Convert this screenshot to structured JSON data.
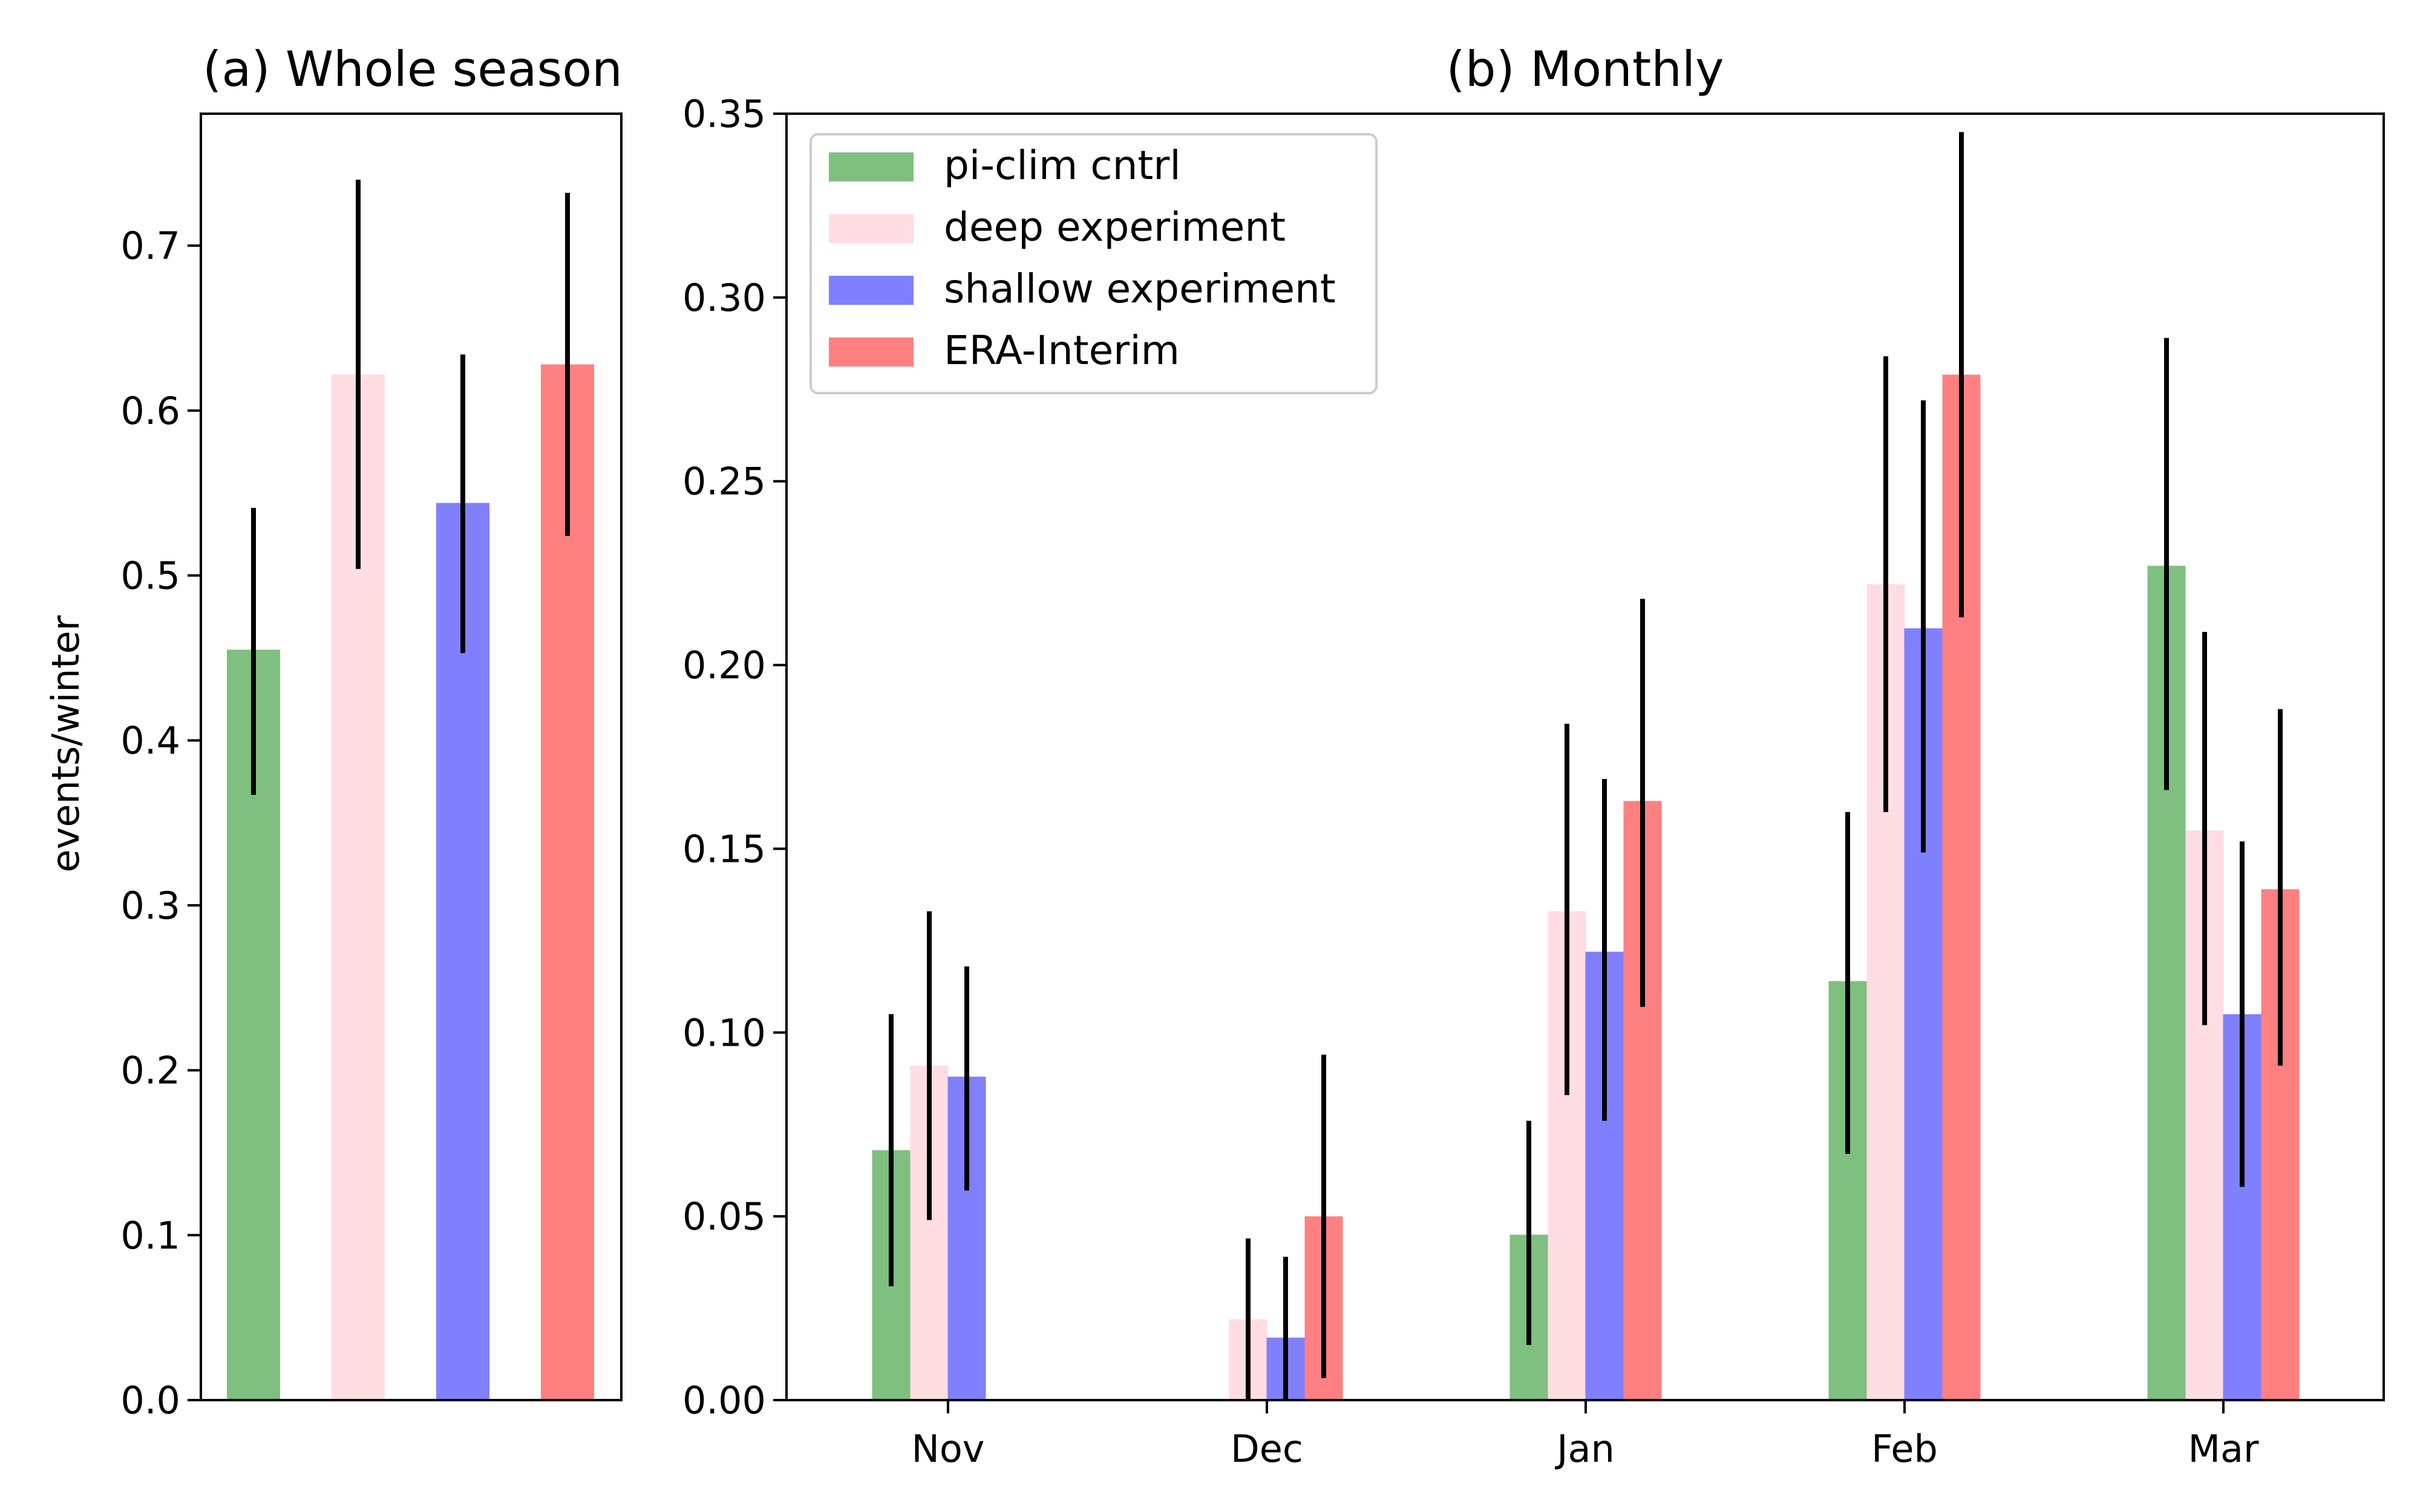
{
  "chart_data": [
    {
      "type": "bar",
      "title": "(a) Whole season",
      "xlabel": "",
      "ylabel": "events/winter",
      "ylim": [
        0,
        0.78
      ],
      "yticks": [
        0.0,
        0.1,
        0.2,
        0.3,
        0.4,
        0.5,
        0.6,
        0.7
      ],
      "ytick_labels": [
        "0.0",
        "0.1",
        "0.2",
        "0.3",
        "0.4",
        "0.5",
        "0.6",
        "0.7"
      ],
      "grid": false,
      "series": [
        {
          "name": "pi-clim cntrl",
          "color": "#7fbf7f",
          "value": 0.455,
          "err": [
            0.367,
            0.541
          ]
        },
        {
          "name": "deep experiment",
          "color": "#ffdde3",
          "value": 0.622,
          "err": [
            0.504,
            0.74
          ]
        },
        {
          "name": "shallow experiment",
          "color": "#8080ff",
          "value": 0.544,
          "err": [
            0.453,
            0.634
          ]
        },
        {
          "name": "ERA-Interim",
          "color": "#ff8080",
          "value": 0.628,
          "err": [
            0.524,
            0.732
          ]
        }
      ]
    },
    {
      "type": "bar",
      "title": "(b) Monthly",
      "xlabel": "",
      "ylabel": "",
      "ylim": [
        0,
        0.35
      ],
      "yticks": [
        0.0,
        0.05,
        0.1,
        0.15,
        0.2,
        0.25,
        0.3,
        0.35
      ],
      "ytick_labels": [
        "0.00",
        "0.05",
        "0.10",
        "0.15",
        "0.20",
        "0.25",
        "0.30",
        "0.35"
      ],
      "grid": false,
      "legend_position": "top-left",
      "categories": [
        "Nov",
        "Dec",
        "Jan",
        "Feb",
        "Mar"
      ],
      "series": [
        {
          "name": "pi-clim cntrl",
          "color": "#7fbf7f",
          "values": [
            0.068,
            0.0,
            0.045,
            0.114,
            0.227
          ],
          "err_low": [
            0.031,
            null,
            0.015,
            0.067,
            0.166
          ],
          "err_high": [
            0.105,
            null,
            0.076,
            0.16,
            0.289
          ]
        },
        {
          "name": "deep experiment",
          "color": "#ffdde3",
          "values": [
            0.091,
            0.022,
            0.133,
            0.222,
            0.155
          ],
          "err_low": [
            0.049,
            0.0,
            0.083,
            0.16,
            0.102
          ],
          "err_high": [
            0.133,
            0.044,
            0.184,
            0.284,
            0.209
          ]
        },
        {
          "name": "shallow experiment",
          "color": "#8080ff",
          "values": [
            0.088,
            0.017,
            0.122,
            0.21,
            0.105
          ],
          "err_low": [
            0.057,
            0.0,
            0.076,
            0.149,
            0.058
          ],
          "err_high": [
            0.118,
            0.039,
            0.169,
            0.272,
            0.152
          ]
        },
        {
          "name": "ERA-Interim",
          "color": "#ff8080",
          "values": [
            0.0,
            0.05,
            0.163,
            0.279,
            0.139
          ],
          "err_low": [
            null,
            0.006,
            0.107,
            0.213,
            0.091
          ],
          "err_high": [
            null,
            0.094,
            0.218,
            0.345,
            0.188
          ]
        }
      ]
    }
  ]
}
